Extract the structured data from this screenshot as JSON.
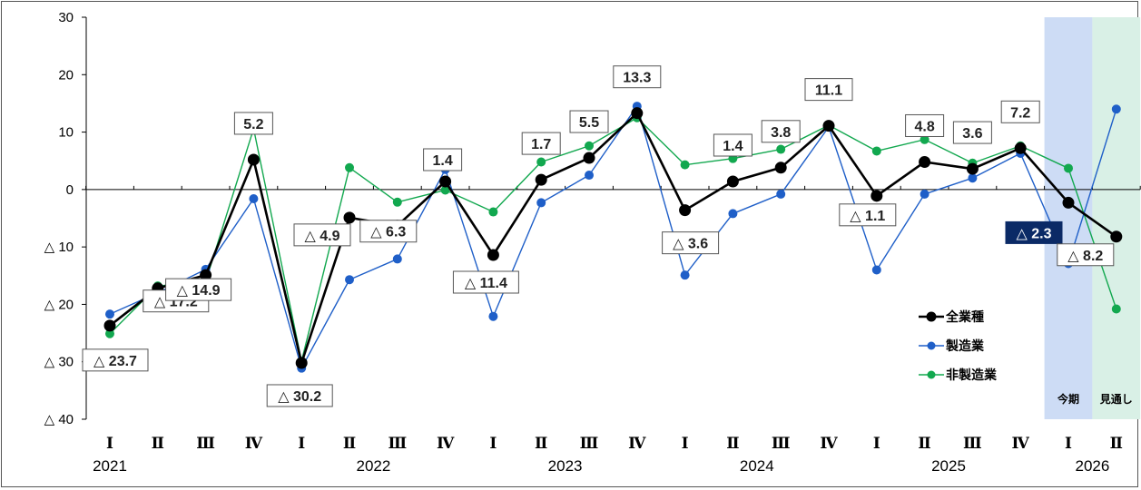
{
  "chart_data": {
    "type": "line",
    "quarter_labels": [
      "Ⅰ",
      "Ⅱ",
      "Ⅲ",
      "Ⅳ",
      "Ⅰ",
      "Ⅱ",
      "Ⅲ",
      "Ⅳ",
      "Ⅰ",
      "Ⅱ",
      "Ⅲ",
      "Ⅳ",
      "Ⅰ",
      "Ⅱ",
      "Ⅲ",
      "Ⅳ",
      "Ⅰ",
      "Ⅱ",
      "Ⅲ",
      "Ⅳ",
      "Ⅰ",
      "Ⅱ"
    ],
    "years": [
      {
        "label": "2021",
        "start": 0,
        "end": 3
      },
      {
        "label": "2022",
        "start": 4,
        "end": 7
      },
      {
        "label": "2023",
        "start": 8,
        "end": 11
      },
      {
        "label": "2024",
        "start": 12,
        "end": 15
      },
      {
        "label": "2025",
        "start": 16,
        "end": 19
      },
      {
        "label": "2026",
        "start": 20,
        "end": 21
      }
    ],
    "y_ticks": [
      {
        "value": 30,
        "label": "30"
      },
      {
        "value": 20,
        "label": "20"
      },
      {
        "value": 10,
        "label": "10"
      },
      {
        "value": 0,
        "label": "0"
      },
      {
        "value": -10,
        "label": "△ 10"
      },
      {
        "value": -20,
        "label": "△ 20"
      },
      {
        "value": -30,
        "label": "△ 30"
      },
      {
        "value": -40,
        "label": "△ 40"
      }
    ],
    "ylim": [
      -40,
      30
    ],
    "series": [
      {
        "name": "全業種",
        "color": "#000000",
        "values": [
          -23.7,
          -17.2,
          -14.9,
          5.2,
          -30.2,
          -4.9,
          -6.3,
          1.4,
          -11.4,
          1.7,
          5.5,
          13.3,
          -3.6,
          1.4,
          3.8,
          11.1,
          -1.1,
          4.8,
          3.6,
          7.2,
          -2.3,
          -8.2
        ]
      },
      {
        "name": "製造業",
        "color": "#1f5fc8",
        "values": [
          -21.7,
          -18.0,
          -13.9,
          -1.6,
          -31.1,
          -15.7,
          -12.1,
          3.5,
          -22.1,
          -2.3,
          2.5,
          14.5,
          -14.9,
          -4.2,
          -0.8,
          10.9,
          -14.0,
          -0.8,
          2.0,
          6.3,
          -12.9,
          14.0
        ]
      },
      {
        "name": "非製造業",
        "color": "#12a84f",
        "values": [
          -25.1,
          -16.8,
          -16.0,
          10.6,
          -29.9,
          3.8,
          -2.2,
          -0.1,
          -3.9,
          4.8,
          7.6,
          12.5,
          4.3,
          5.4,
          7.0,
          11.2,
          6.7,
          8.7,
          4.6,
          7.6,
          3.7,
          -20.8
        ]
      }
    ],
    "data_labels": [
      "△ 23.7",
      "△ 17.2",
      "△ 14.9",
      "5.2",
      "△ 30.2",
      "△ 4.9",
      "△ 6.3",
      "1.4",
      "△ 11.4",
      "1.7",
      "5.5",
      "13.3",
      "△ 3.6",
      "1.4",
      "3.8",
      "11.1",
      "△ 1.1",
      "4.8",
      "3.6",
      "7.2",
      "△ 2.3",
      "△ 8.2"
    ],
    "highlighted_label_index": 20,
    "bands": [
      {
        "label": "今期",
        "index": 20,
        "color": "#cddcf5"
      },
      {
        "label": "見通し",
        "index": 21,
        "color": "#d9f0e6"
      }
    ],
    "legend": {
      "position": "right"
    },
    "grid": false
  }
}
